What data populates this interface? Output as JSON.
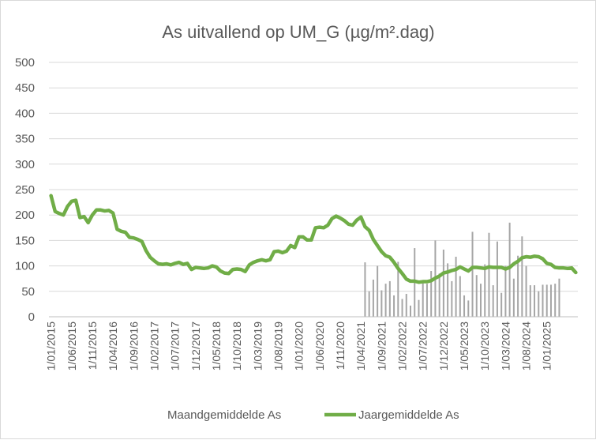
{
  "chart_data": {
    "type": "bar+line",
    "title": "As uitvallend op UM_G (µg/m².dag)",
    "xlabel": "",
    "ylabel": "",
    "ylim": [
      0,
      500
    ],
    "yticks": [
      0,
      50,
      100,
      150,
      200,
      250,
      300,
      350,
      400,
      450,
      500
    ],
    "grid": "horizontal",
    "legend_position": "bottom",
    "x_start": "2015-01",
    "x_end": "2025-06",
    "x_step_months": 1,
    "xtick_labels": [
      "1/01/2015",
      "1/06/2015",
      "1/11/2015",
      "1/04/2016",
      "1/09/2016",
      "1/02/2017",
      "1/07/2017",
      "1/12/2017",
      "1/05/2018",
      "1/10/2018",
      "1/03/2019",
      "1/08/2019",
      "1/01/2020",
      "1/06/2020",
      "1/11/2020",
      "1/04/2021",
      "1/09/2021",
      "1/02/2022",
      "1/07/2022",
      "1/12/2022",
      "1/05/2023",
      "1/10/2023",
      "1/03/2024",
      "1/08/2024",
      "1/01/2025"
    ],
    "series": [
      {
        "name": "Maandgemiddelde As",
        "kind": "bar",
        "color": "#a6a6a6",
        "values": [
          null,
          null,
          null,
          null,
          null,
          null,
          null,
          null,
          null,
          null,
          null,
          null,
          null,
          null,
          null,
          null,
          null,
          null,
          null,
          null,
          null,
          null,
          null,
          null,
          null,
          null,
          null,
          null,
          null,
          null,
          null,
          null,
          null,
          null,
          null,
          null,
          null,
          null,
          null,
          null,
          null,
          null,
          null,
          null,
          null,
          null,
          null,
          null,
          null,
          null,
          null,
          null,
          null,
          null,
          null,
          null,
          null,
          null,
          null,
          null,
          null,
          null,
          null,
          null,
          null,
          null,
          null,
          null,
          null,
          null,
          null,
          null,
          null,
          null,
          null,
          null,
          107,
          50,
          73,
          100,
          52,
          65,
          70,
          42,
          108,
          35,
          45,
          22,
          135,
          33,
          70,
          65,
          90,
          150,
          85,
          132,
          105,
          70,
          118,
          80,
          42,
          32,
          167,
          82,
          65,
          103,
          165,
          62,
          148,
          47,
          100,
          185,
          75,
          120,
          158,
          100,
          62,
          62,
          50,
          63,
          63,
          63,
          65,
          75
        ]
      },
      {
        "name": "Jaargemiddelde As",
        "kind": "line",
        "color": "#70ad47",
        "values": [
          238,
          207,
          203,
          200,
          217,
          227,
          229,
          195,
          197,
          185,
          200,
          210,
          210,
          208,
          209,
          204,
          172,
          168,
          166,
          156,
          155,
          152,
          148,
          130,
          117,
          110,
          104,
          103,
          104,
          102,
          105,
          107,
          103,
          105,
          93,
          97,
          96,
          95,
          96,
          100,
          98,
          90,
          86,
          85,
          93,
          94,
          93,
          89,
          102,
          107,
          110,
          112,
          110,
          112,
          128,
          129,
          126,
          129,
          140,
          136,
          157,
          157,
          151,
          151,
          175,
          176,
          175,
          180,
          193,
          198,
          194,
          189,
          182,
          180,
          190,
          196,
          177,
          170,
          152,
          140,
          128,
          120,
          117,
          107,
          95,
          85,
          74,
          70,
          70,
          68,
          69,
          69,
          71,
          76,
          80,
          86,
          88,
          91,
          93,
          98,
          94,
          90,
          97,
          97,
          96,
          95,
          98,
          97,
          97,
          97,
          94,
          97,
          104,
          109,
          116,
          118,
          117,
          119,
          118,
          114,
          105,
          103,
          97,
          96,
          96,
          95,
          96,
          87
        ]
      }
    ]
  }
}
